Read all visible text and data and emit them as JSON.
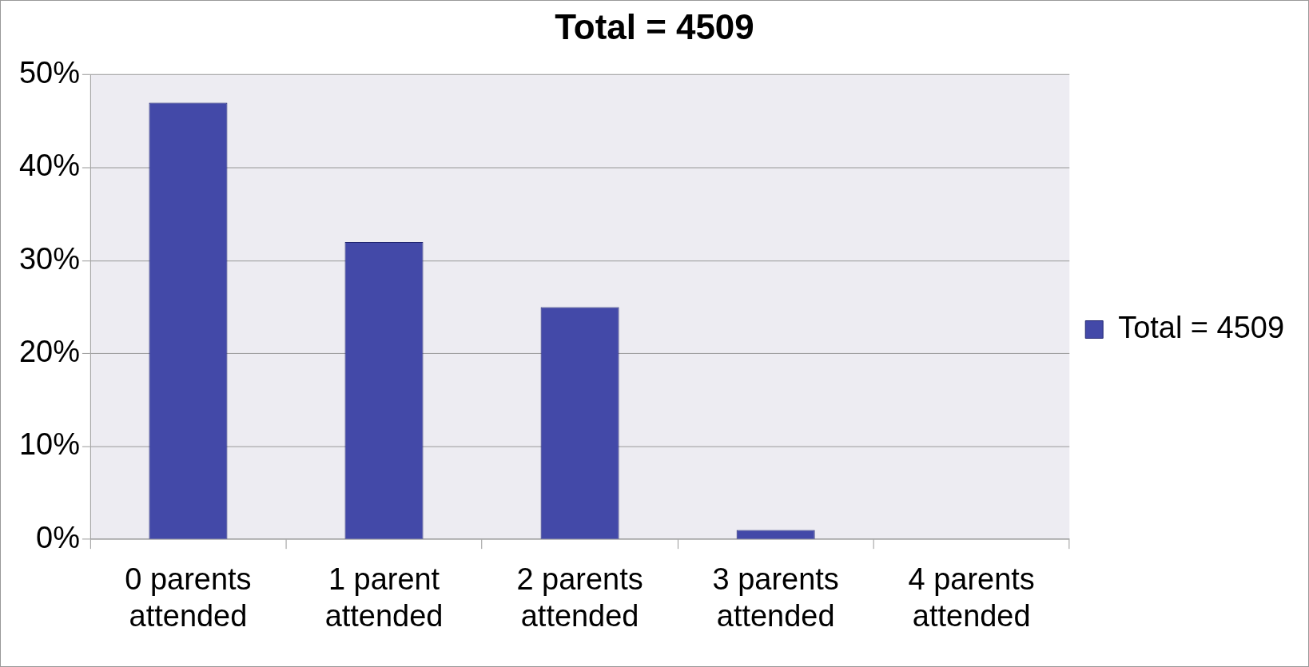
{
  "chart_data": {
    "type": "bar",
    "title": "Total = 4509",
    "categories": [
      "0 parents attended",
      "1 parent attended",
      "2 parents attended",
      "3 parents attended",
      "4 parents attended"
    ],
    "series": [
      {
        "name": "Total = 4509",
        "color": "#4349a8",
        "values": [
          47,
          32,
          25,
          1,
          0
        ]
      }
    ],
    "ylim": [
      0,
      50
    ],
    "yticks": [
      {
        "value": 0,
        "label": "0%"
      },
      {
        "value": 10,
        "label": "10%"
      },
      {
        "value": 20,
        "label": "20%"
      },
      {
        "value": 30,
        "label": "30%"
      },
      {
        "value": 40,
        "label": "40%"
      },
      {
        "value": 50,
        "label": "50%"
      }
    ],
    "grid": "y",
    "legend": "right"
  }
}
